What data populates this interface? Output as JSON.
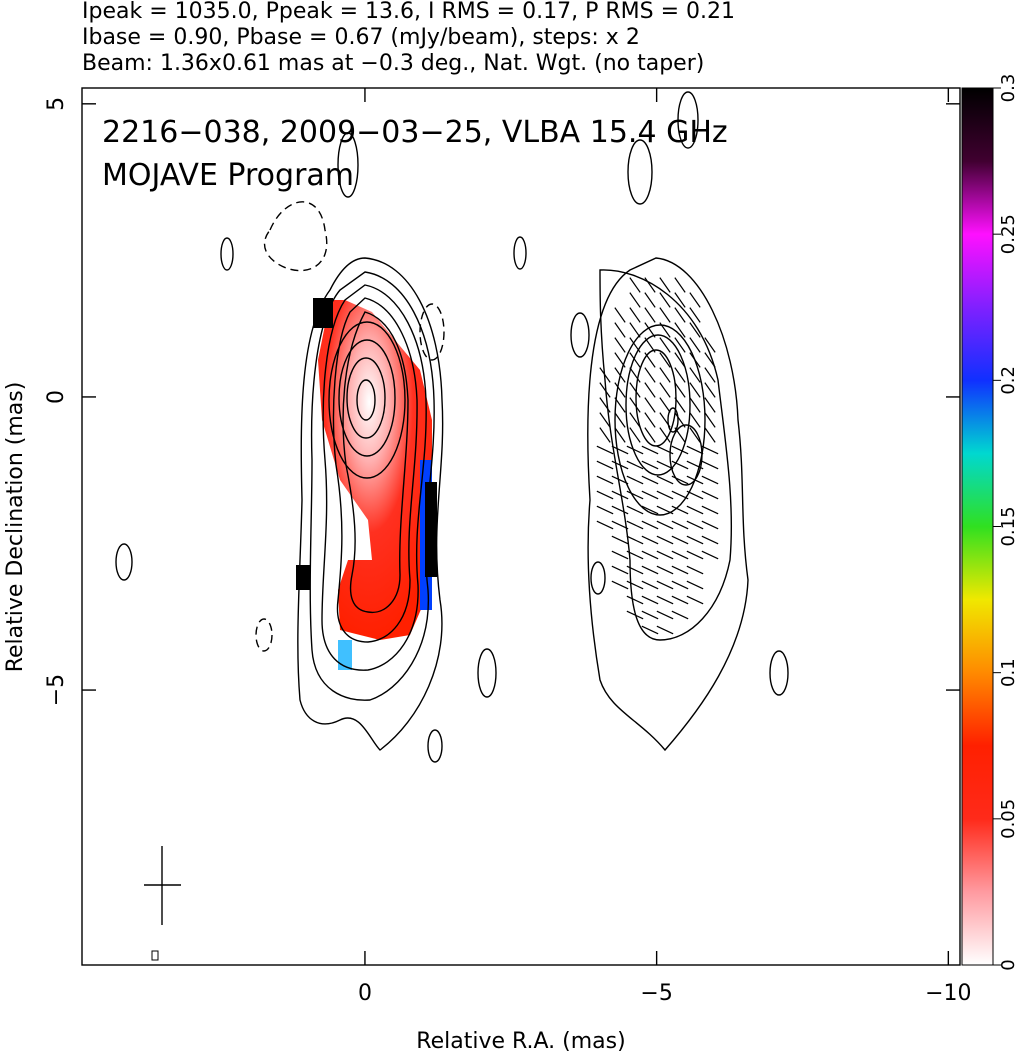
{
  "chart_data": {
    "type": "image",
    "title_lines": [
      "Ipeak = 1035.0, Ppeak = 13.6, I RMS = 0.17, P RMS = 0.21",
      "Ibase = 0.90, Pbase = 0.67 (mJy/beam), steps: x 2",
      "Beam: 1.36x0.61 mas at −0.3 deg., Nat. Wgt. (no taper)"
    ],
    "annotations": [
      "2216−038, 2009−03−25, VLBA 15.4 GHz",
      "MOJAVE Program"
    ],
    "xlabel": "Relative R.A. (mas)",
    "ylabel": "Relative Declination (mas)",
    "xlim": [
      4.85,
      -10.2
    ],
    "ylim": [
      -9.69,
      5.27
    ],
    "xticks": [
      0,
      {
        "value": -5,
        "label": "−5"
      },
      {
        "value": -10,
        "label": "−10"
      }
    ],
    "yticks": [
      {
        "value": -5,
        "label": "−5"
      },
      0,
      5
    ],
    "colorbar": {
      "lim": [
        0,
        0.3
      ],
      "ticks": [
        0,
        0.05,
        0.1,
        0.15,
        0.2,
        0.25,
        0.3
      ],
      "colors": [
        "#ffffff",
        "#ff9aa0",
        "#ff2a1a",
        "#ff2000",
        "#ff8a00",
        "#f0e800",
        "#30e020",
        "#00d8d0",
        "#1030ff",
        "#8020ff",
        "#ff10ff",
        "#400030",
        "#000000"
      ]
    }
  }
}
